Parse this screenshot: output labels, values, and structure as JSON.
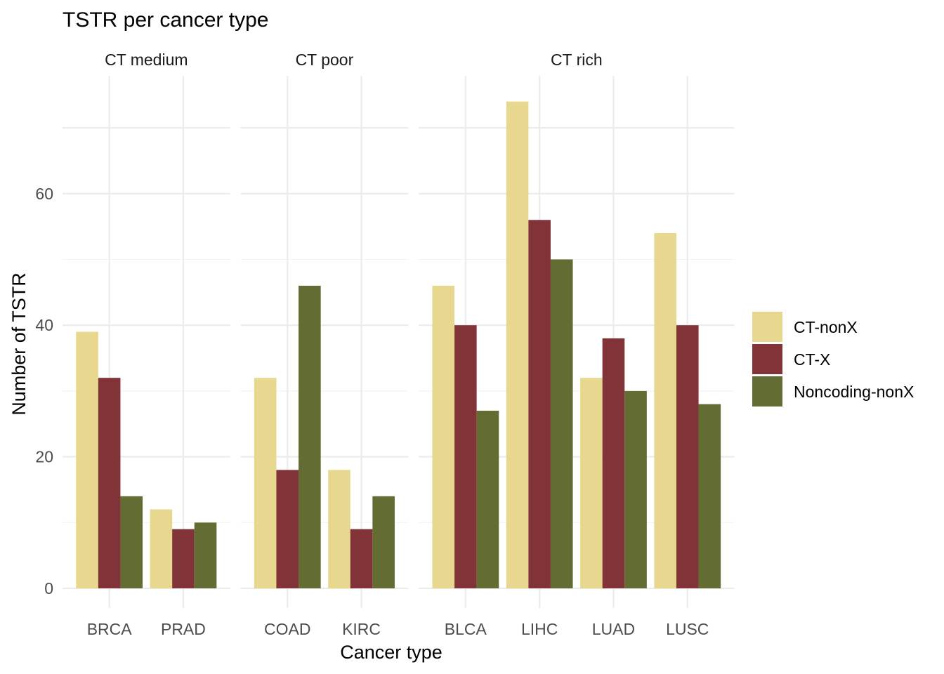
{
  "chart_data": {
    "type": "bar",
    "title": "TSTR per cancer type",
    "xlabel": "Cancer type",
    "ylabel": "Number of TSTR",
    "ylim": [
      0,
      80
    ],
    "yticks": [
      0,
      20,
      40,
      60
    ],
    "grid": true,
    "legend_position": "right",
    "series": [
      {
        "name": "CT-nonX",
        "color": "#E8D78E"
      },
      {
        "name": "CT-X",
        "color": "#823338"
      },
      {
        "name": "Noncoding-nonX",
        "color": "#636C32"
      }
    ],
    "facets": [
      {
        "label": "CT medium",
        "categories": [
          "BRCA",
          "PRAD"
        ],
        "values": [
          [
            39,
            32,
            14
          ],
          [
            12,
            9,
            10
          ]
        ]
      },
      {
        "label": "CT poor",
        "categories": [
          "COAD",
          "KIRC"
        ],
        "values": [
          [
            32,
            18,
            46
          ],
          [
            18,
            9,
            14
          ]
        ]
      },
      {
        "label": "CT rich",
        "categories": [
          "BLCA",
          "LIHC",
          "LUAD",
          "LUSC"
        ],
        "values": [
          [
            46,
            40,
            27
          ],
          [
            74,
            56,
            50
          ],
          [
            32,
            38,
            30
          ],
          [
            54,
            40,
            28
          ]
        ]
      }
    ]
  }
}
